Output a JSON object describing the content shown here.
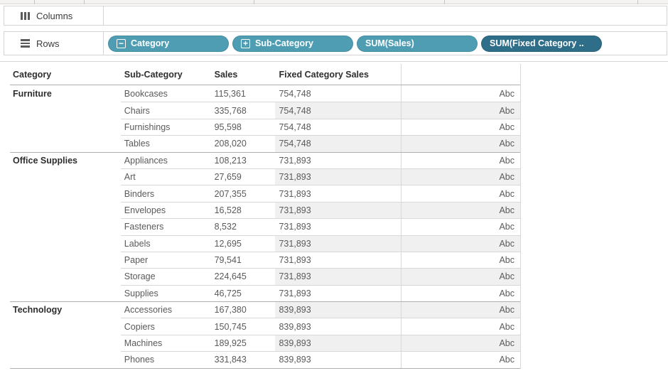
{
  "shelves": {
    "columns": {
      "label": "Columns"
    },
    "rows": {
      "label": "Rows",
      "pills": [
        {
          "label": "Category",
          "prefix": "minus",
          "variant": "normal"
        },
        {
          "label": "Sub-Category",
          "prefix": "plus",
          "variant": "normal"
        },
        {
          "label": "SUM(Sales)",
          "prefix": "",
          "variant": "normal"
        },
        {
          "label": "SUM(Fixed Category ..",
          "prefix": "",
          "variant": "selected"
        }
      ]
    }
  },
  "colors": {
    "pill": "#4E9DB3",
    "pill_selected": "#2E6E88",
    "band": "#F0F0F0",
    "border_light": "#D8D8D8",
    "border_dark": "#B0AFAE"
  },
  "table": {
    "headers": {
      "category": "Category",
      "sub_category": "Sub-Category",
      "sales": "Sales",
      "fixed": "Fixed Category Sales"
    },
    "placeholder": "Abc",
    "groups": [
      {
        "category": "Furniture",
        "rows": [
          {
            "sub_category": "Bookcases",
            "sales": "115,361",
            "fixed": "754,748"
          },
          {
            "sub_category": "Chairs",
            "sales": "335,768",
            "fixed": "754,748"
          },
          {
            "sub_category": "Furnishings",
            "sales": "95,598",
            "fixed": "754,748"
          },
          {
            "sub_category": "Tables",
            "sales": "208,020",
            "fixed": "754,748"
          }
        ]
      },
      {
        "category": "Office Supplies",
        "rows": [
          {
            "sub_category": "Appliances",
            "sales": "108,213",
            "fixed": "731,893"
          },
          {
            "sub_category": "Art",
            "sales": "27,659",
            "fixed": "731,893"
          },
          {
            "sub_category": "Binders",
            "sales": "207,355",
            "fixed": "731,893"
          },
          {
            "sub_category": "Envelopes",
            "sales": "16,528",
            "fixed": "731,893"
          },
          {
            "sub_category": "Fasteners",
            "sales": "8,532",
            "fixed": "731,893"
          },
          {
            "sub_category": "Labels",
            "sales": "12,695",
            "fixed": "731,893"
          },
          {
            "sub_category": "Paper",
            "sales": "79,541",
            "fixed": "731,893"
          },
          {
            "sub_category": "Storage",
            "sales": "224,645",
            "fixed": "731,893"
          },
          {
            "sub_category": "Supplies",
            "sales": "46,725",
            "fixed": "731,893"
          }
        ]
      },
      {
        "category": "Technology",
        "rows": [
          {
            "sub_category": "Accessories",
            "sales": "167,380",
            "fixed": "839,893"
          },
          {
            "sub_category": "Copiers",
            "sales": "150,745",
            "fixed": "839,893"
          },
          {
            "sub_category": "Machines",
            "sales": "189,925",
            "fixed": "839,893"
          },
          {
            "sub_category": "Phones",
            "sales": "331,843",
            "fixed": "839,893"
          }
        ]
      }
    ]
  }
}
